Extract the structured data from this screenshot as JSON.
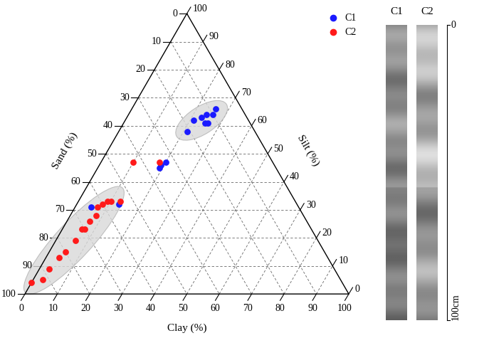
{
  "chart_data": [
    {
      "type": "ternary",
      "axis_labels": {
        "sand": "Sand (%)",
        "silt": "Silt (%)",
        "clay": "Clay (%)"
      },
      "ticks": [
        0,
        10,
        20,
        30,
        40,
        50,
        60,
        70,
        80,
        90,
        100
      ],
      "grid": true,
      "legend": "upper right",
      "series": [
        {
          "name": "C1",
          "color": "#1a1aff",
          "marker": "circle",
          "sand": [
            21,
            17,
            14,
            12,
            14,
            13,
            8,
            10,
            35,
            36,
            33,
            64,
            55
          ],
          "silt": [
            58,
            62,
            63,
            64,
            61,
            61,
            66,
            64,
            46,
            45,
            47,
            31,
            32
          ],
          "clay": [
            21,
            21,
            23,
            24,
            25,
            26,
            26,
            26,
            19,
            19,
            20,
            5,
            13
          ]
        },
        {
          "name": "C2",
          "color": "#ff1a1a",
          "marker": "circle",
          "sand": [
            35,
            43,
            54,
            57,
            58,
            60,
            62,
            64,
            67,
            70,
            71,
            75,
            80,
            83,
            88,
            92,
            96
          ],
          "silt": [
            47,
            47,
            33,
            33,
            33,
            32,
            31,
            28,
            26,
            23,
            23,
            19,
            15,
            13,
            9,
            5,
            4
          ],
          "clay": [
            18,
            10,
            13,
            10,
            9,
            8,
            7,
            8,
            7,
            7,
            6,
            6,
            5,
            4,
            3,
            3,
            0
          ]
        }
      ]
    },
    {
      "type": "core_photos",
      "cores": [
        "C1",
        "C2"
      ],
      "yticks": [
        {
          "value": 0,
          "label": "0"
        },
        {
          "value": 100,
          "label": "100cm"
        }
      ]
    }
  ]
}
